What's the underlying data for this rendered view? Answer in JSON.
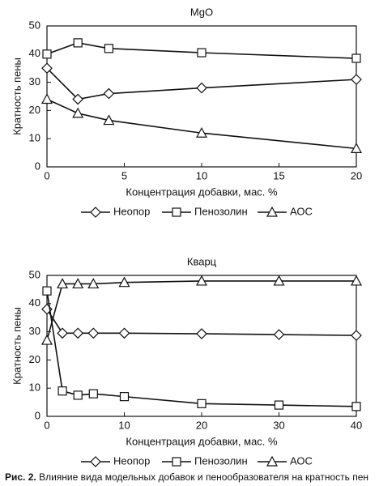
{
  "chart_data": [
    {
      "type": "line",
      "title": "MgO",
      "x_label": "Концентрация добавки, мас. %",
      "y_label": "Кратность пены",
      "x": [
        0,
        2,
        4,
        10,
        20
      ],
      "xlim": [
        0,
        20
      ],
      "xticks": [
        0,
        5,
        10,
        15,
        20
      ],
      "ylim": [
        0,
        50
      ],
      "yticks": [
        0,
        10,
        20,
        30,
        40,
        50
      ],
      "series": [
        {
          "name": "Неопор",
          "color": "#111111",
          "marker": "diamond",
          "values": [
            35,
            24,
            26,
            28,
            31
          ]
        },
        {
          "name": "Пенозолин",
          "color": "#111111",
          "marker": "square",
          "values": [
            40,
            44,
            42,
            40.5,
            38.5
          ]
        },
        {
          "name": "АОС",
          "color": "#111111",
          "marker": "triangle",
          "values": [
            24,
            19,
            16.5,
            12,
            6.5
          ]
        }
      ]
    },
    {
      "type": "line",
      "title": "Кварц",
      "x_label": "Концентрация добавки, мас. %",
      "y_label": "Кратность пены",
      "x": [
        0,
        2,
        4,
        6,
        10,
        20,
        30,
        40
      ],
      "xlim": [
        0,
        40
      ],
      "xticks": [
        0,
        10,
        20,
        30,
        40
      ],
      "ylim": [
        0,
        50
      ],
      "yticks": [
        0,
        10,
        20,
        30,
        40,
        50
      ],
      "series": [
        {
          "name": "Неопор",
          "color": "#111111",
          "marker": "diamond",
          "values": [
            38,
            29.5,
            29.5,
            29.5,
            29.5,
            29.3,
            29,
            28.7
          ]
        },
        {
          "name": "Пенозолин",
          "color": "#111111",
          "marker": "square",
          "values": [
            44.5,
            9,
            7.5,
            8,
            7,
            4.5,
            4,
            3.5
          ]
        },
        {
          "name": "АОС",
          "color": "#111111",
          "marker": "triangle",
          "values": [
            27,
            47,
            47,
            47,
            47.5,
            48,
            48,
            48
          ]
        }
      ]
    }
  ],
  "caption": {
    "label": "Рис. 2.",
    "text": "Влияние вида модельных добавок и пенообразователя на кратность пен"
  }
}
